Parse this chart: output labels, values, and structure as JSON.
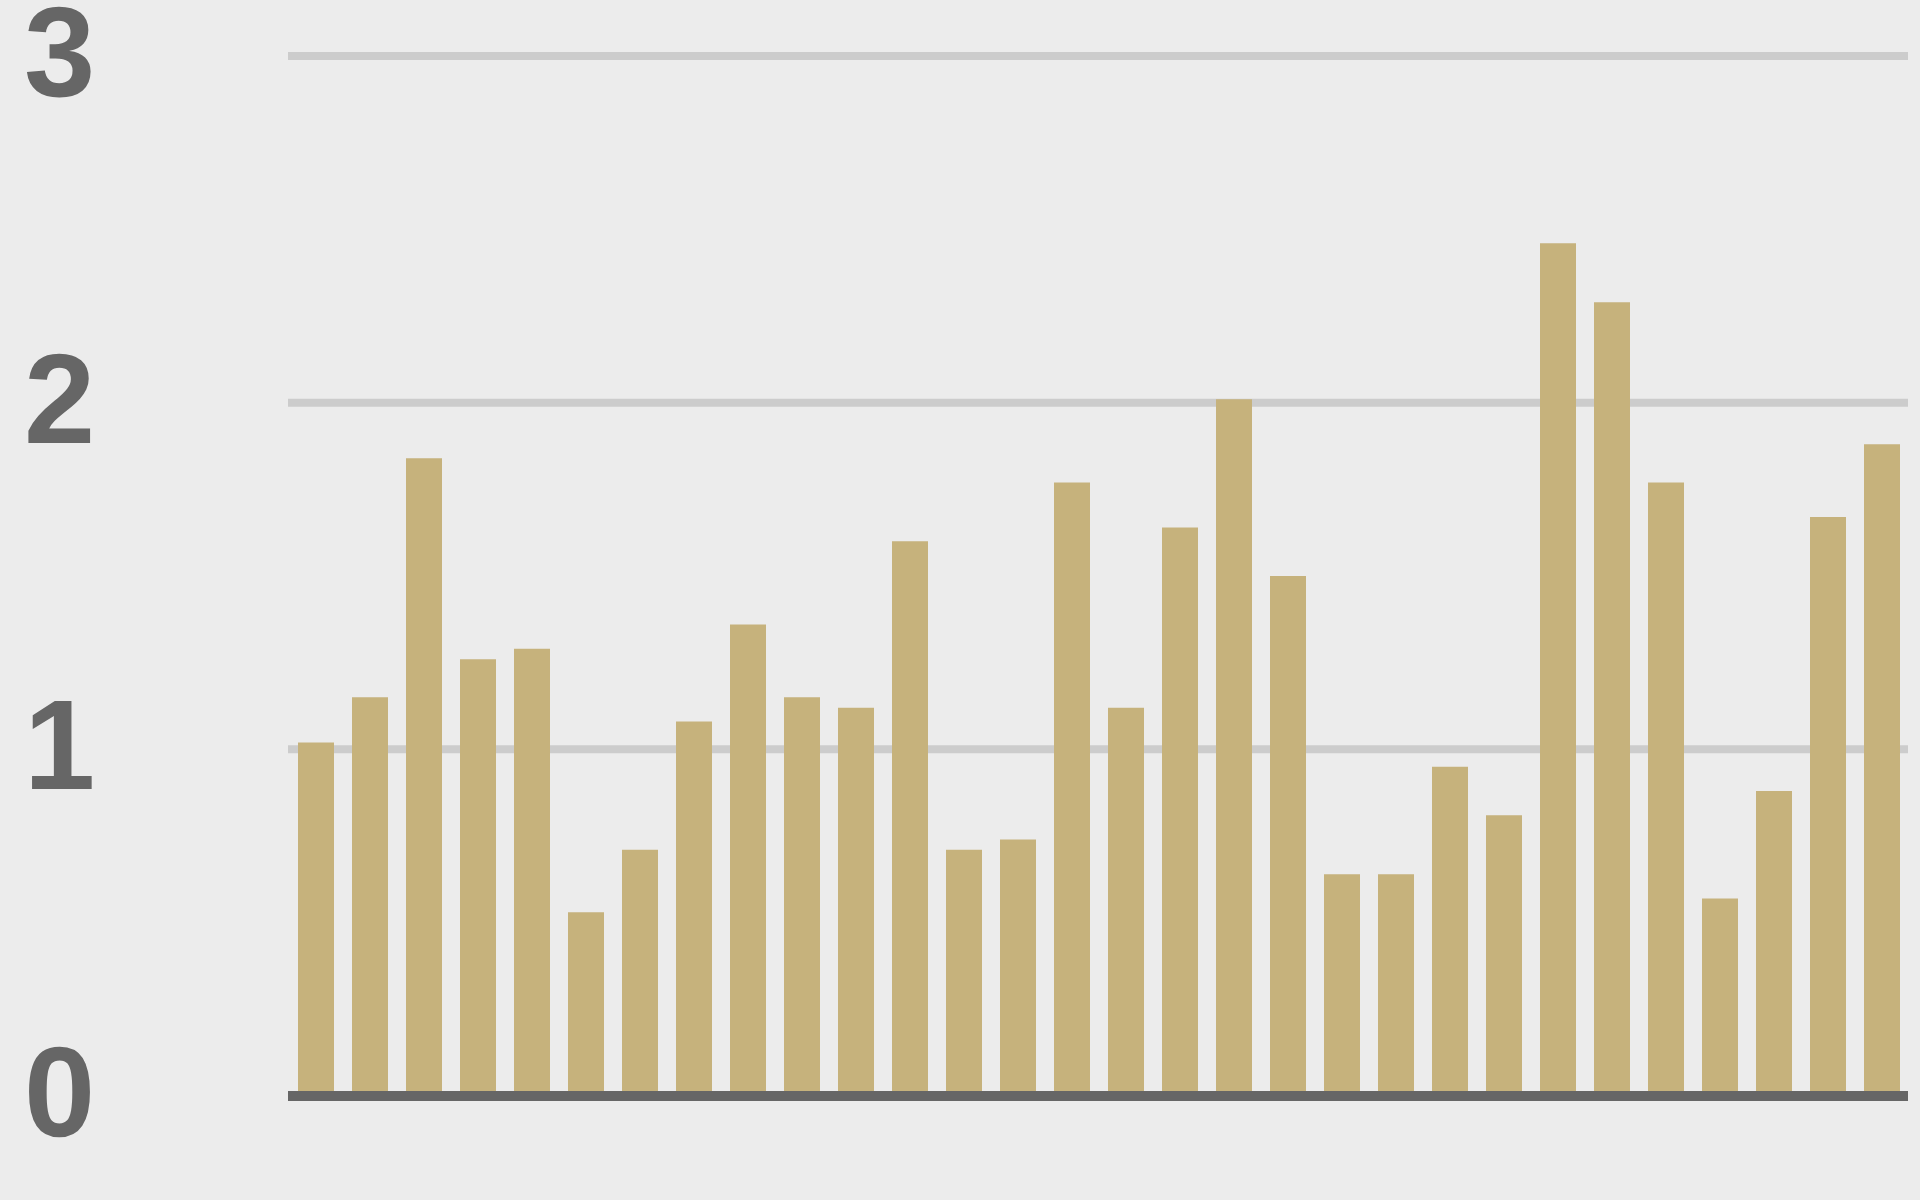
{
  "chart_data": {
    "type": "bar",
    "categories": [
      null,
      null,
      null,
      null,
      null,
      null,
      null,
      null,
      null,
      null,
      null,
      null,
      null,
      null,
      null,
      null,
      null,
      null,
      null,
      null,
      null,
      null,
      null,
      null,
      null,
      null,
      null,
      null,
      null,
      null
    ],
    "values": [
      1.02,
      1.15,
      1.84,
      1.26,
      1.29,
      0.53,
      0.71,
      1.08,
      1.36,
      1.15,
      1.12,
      1.6,
      0.71,
      0.74,
      1.77,
      1.12,
      1.64,
      2.01,
      1.5,
      0.64,
      0.64,
      0.95,
      0.81,
      2.46,
      2.29,
      1.77,
      0.57,
      0.88,
      1.67,
      1.88
    ],
    "color": "#c6b27c",
    "ylim": [
      0,
      3
    ],
    "yticks": [
      0,
      1,
      2,
      3
    ],
    "grid": "y"
  }
}
